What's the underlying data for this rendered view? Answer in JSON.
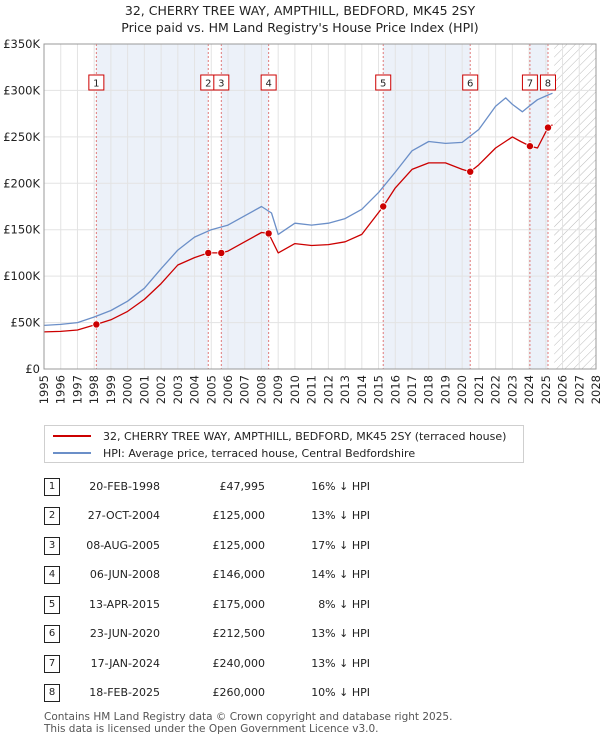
{
  "title_line1": "32, CHERRY TREE WAY, AMPTHILL, BEDFORD, MK45 2SY",
  "title_line2": "Price paid vs. HM Land Registry's House Price Index (HPI)",
  "legend": {
    "property": "32, CHERRY TREE WAY, AMPTHILL, BEDFORD, MK45 2SY (terraced house)",
    "hpi": "HPI: Average price, terraced house, Central Bedfordshire"
  },
  "colors": {
    "property": "#cc0000",
    "hpi": "#6b8fc8",
    "shade": "#dde6f4",
    "marker_line": "#e07a7a"
  },
  "sales": [
    {
      "num": "1",
      "date": "20-FEB-1998",
      "price": "£47,995",
      "hpi": "16% ↓ HPI"
    },
    {
      "num": "2",
      "date": "27-OCT-2004",
      "price": "£125,000",
      "hpi": "13% ↓ HPI"
    },
    {
      "num": "3",
      "date": "08-AUG-2005",
      "price": "£125,000",
      "hpi": "17% ↓ HPI"
    },
    {
      "num": "4",
      "date": "06-JUN-2008",
      "price": "£146,000",
      "hpi": "14% ↓ HPI"
    },
    {
      "num": "5",
      "date": "13-APR-2015",
      "price": "£175,000",
      "hpi": "8% ↓ HPI"
    },
    {
      "num": "6",
      "date": "23-JUN-2020",
      "price": "£212,500",
      "hpi": "13% ↓ HPI"
    },
    {
      "num": "7",
      "date": "17-JAN-2024",
      "price": "£240,000",
      "hpi": "13% ↓ HPI"
    },
    {
      "num": "8",
      "date": "18-FEB-2025",
      "price": "£260,000",
      "hpi": "10% ↓ HPI"
    }
  ],
  "footer_line1": "Contains HM Land Registry data © Crown copyright and database right 2025.",
  "footer_line2": "This data is licensed under the Open Government Licence v3.0.",
  "chart_data": {
    "type": "line",
    "xlim": [
      1995,
      2028
    ],
    "ylim": [
      0,
      350000
    ],
    "y_ticks": [
      0,
      50000,
      100000,
      150000,
      200000,
      250000,
      300000,
      350000
    ],
    "y_tick_labels": [
      "£0",
      "£50K",
      "£100K",
      "£150K",
      "£200K",
      "£250K",
      "£300K",
      "£350K"
    ],
    "x_ticks": [
      1995,
      1996,
      1997,
      1998,
      1999,
      2000,
      2001,
      2002,
      2003,
      2004,
      2005,
      2006,
      2007,
      2008,
      2009,
      2010,
      2011,
      2012,
      2013,
      2014,
      2015,
      2016,
      2017,
      2018,
      2019,
      2020,
      2021,
      2022,
      2023,
      2024,
      2025,
      2026,
      2027,
      2028
    ],
    "x_tick_labels": [
      "1995",
      "1996",
      "1997",
      "1998",
      "1999",
      "2000",
      "2001",
      "2002",
      "2003",
      "2004",
      "2005",
      "2006",
      "2007",
      "2008",
      "2009",
      "2010",
      "2011",
      "2012",
      "2013",
      "2014",
      "2015",
      "2016",
      "2017",
      "2018",
      "2019",
      "2020",
      "2021",
      "2022",
      "2023",
      "2024",
      "2025",
      "2026",
      "2027",
      "2028"
    ],
    "grid": true,
    "future_hatch_from": 2025.5,
    "sale_markers": [
      {
        "label": "1",
        "x": 1998.13,
        "y": 47995
      },
      {
        "label": "2",
        "x": 2004.82,
        "y": 125000
      },
      {
        "label": "3",
        "x": 2005.6,
        "y": 125000
      },
      {
        "label": "4",
        "x": 2008.43,
        "y": 146000
      },
      {
        "label": "5",
        "x": 2015.28,
        "y": 175000
      },
      {
        "label": "6",
        "x": 2020.48,
        "y": 212500
      },
      {
        "label": "7",
        "x": 2024.05,
        "y": 240000
      },
      {
        "label": "8",
        "x": 2025.13,
        "y": 260000
      }
    ],
    "series": [
      {
        "name": "32, CHERRY TREE WAY, AMPTHILL, BEDFORD, MK45 2SY (terraced house)",
        "points": [
          [
            1995,
            40000
          ],
          [
            1996,
            40500
          ],
          [
            1997,
            42000
          ],
          [
            1998.13,
            47995
          ],
          [
            1999,
            53000
          ],
          [
            2000,
            62000
          ],
          [
            2001,
            75000
          ],
          [
            2002,
            92000
          ],
          [
            2003,
            112000
          ],
          [
            2004,
            120000
          ],
          [
            2004.82,
            125000
          ],
          [
            2005.6,
            125000
          ],
          [
            2006,
            127000
          ],
          [
            2007,
            137000
          ],
          [
            2008,
            147000
          ],
          [
            2008.43,
            146000
          ],
          [
            2009,
            125000
          ],
          [
            2010,
            135000
          ],
          [
            2011,
            133000
          ],
          [
            2012,
            134000
          ],
          [
            2013,
            137000
          ],
          [
            2014,
            145000
          ],
          [
            2015.28,
            175000
          ],
          [
            2016,
            195000
          ],
          [
            2017,
            215000
          ],
          [
            2018,
            222000
          ],
          [
            2019,
            222000
          ],
          [
            2020,
            215000
          ],
          [
            2020.48,
            212500
          ],
          [
            2021,
            220000
          ],
          [
            2022,
            238000
          ],
          [
            2023,
            250000
          ],
          [
            2023.5,
            245000
          ],
          [
            2024.05,
            240000
          ],
          [
            2024.5,
            238000
          ],
          [
            2025.13,
            260000
          ],
          [
            2025.4,
            263000
          ]
        ]
      },
      {
        "name": "HPI: Average price, terraced house, Central Bedfordshire",
        "points": [
          [
            1995,
            47000
          ],
          [
            1996,
            48000
          ],
          [
            1997,
            50000
          ],
          [
            1998,
            56000
          ],
          [
            1999,
            63000
          ],
          [
            2000,
            73000
          ],
          [
            2001,
            87000
          ],
          [
            2002,
            108000
          ],
          [
            2003,
            128000
          ],
          [
            2004,
            142000
          ],
          [
            2005,
            150000
          ],
          [
            2006,
            155000
          ],
          [
            2007,
            165000
          ],
          [
            2008,
            175000
          ],
          [
            2008.6,
            168000
          ],
          [
            2009,
            145000
          ],
          [
            2010,
            157000
          ],
          [
            2011,
            155000
          ],
          [
            2012,
            157000
          ],
          [
            2013,
            162000
          ],
          [
            2014,
            172000
          ],
          [
            2015,
            190000
          ],
          [
            2016,
            212000
          ],
          [
            2017,
            235000
          ],
          [
            2018,
            245000
          ],
          [
            2019,
            243000
          ],
          [
            2020,
            244000
          ],
          [
            2021,
            258000
          ],
          [
            2022,
            283000
          ],
          [
            2022.6,
            292000
          ],
          [
            2023,
            285000
          ],
          [
            2023.6,
            277000
          ],
          [
            2024,
            283000
          ],
          [
            2024.5,
            290000
          ],
          [
            2025,
            294000
          ],
          [
            2025.4,
            297000
          ]
        ]
      }
    ]
  }
}
